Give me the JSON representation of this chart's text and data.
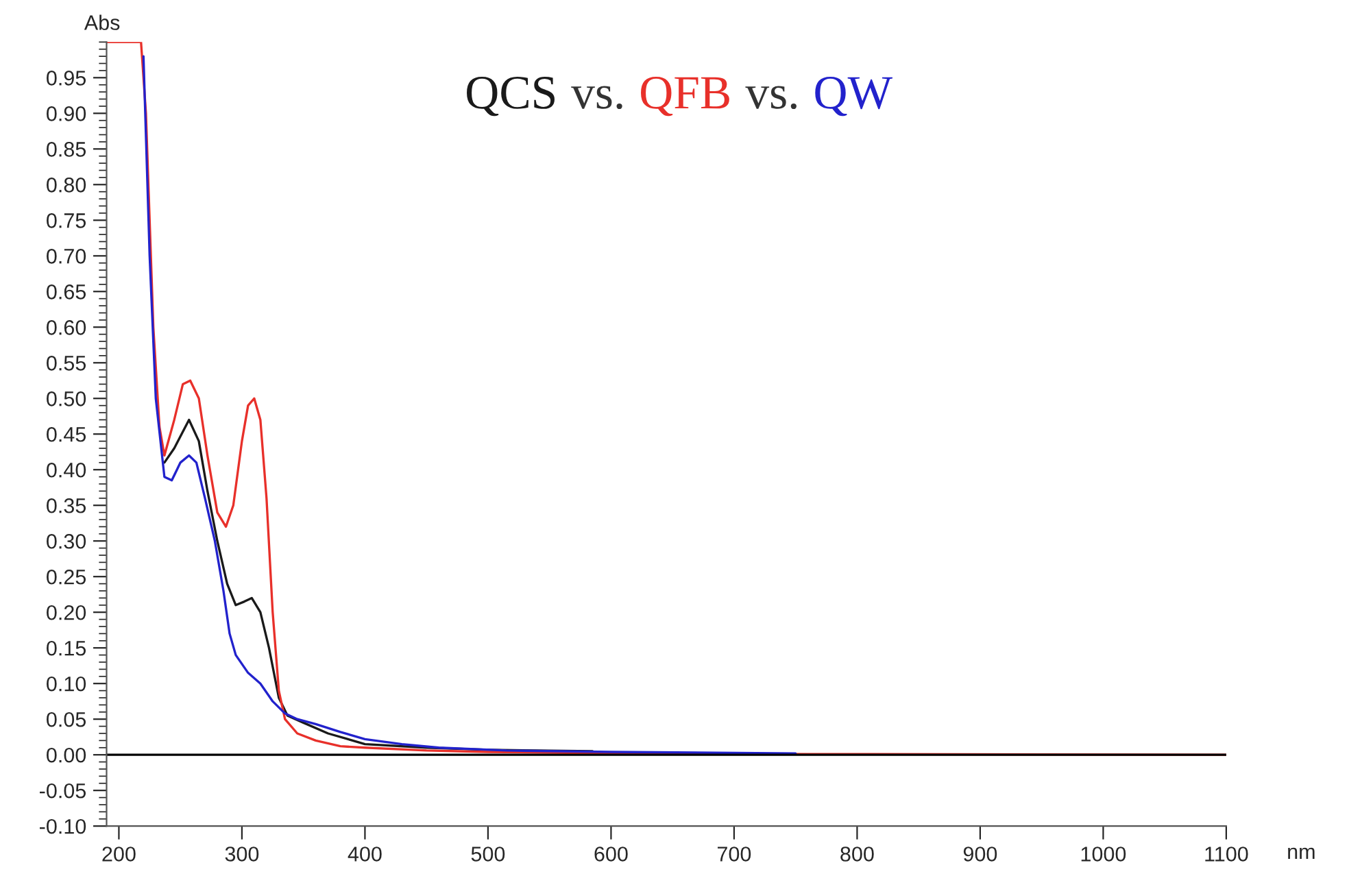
{
  "chart_data": {
    "type": "line",
    "xlabel": "nm",
    "ylabel": "Abs",
    "xlim": [
      190,
      1100
    ],
    "ylim": [
      -0.1,
      1.0
    ],
    "xticks": [
      200,
      300,
      400,
      500,
      600,
      700,
      800,
      900,
      1000,
      1100
    ],
    "yticks": [
      {
        "value": -0.1,
        "label": "-0.10"
      },
      {
        "value": -0.05,
        "label": "-0.05"
      },
      {
        "value": 0.0,
        "label": "0.00"
      },
      {
        "value": 0.05,
        "label": "0.05"
      },
      {
        "value": 0.1,
        "label": "0.10"
      },
      {
        "value": 0.15,
        "label": "0.15"
      },
      {
        "value": 0.2,
        "label": "0.20"
      },
      {
        "value": 0.25,
        "label": "0.25"
      },
      {
        "value": 0.3,
        "label": "0.30"
      },
      {
        "value": 0.35,
        "label": "0.35"
      },
      {
        "value": 0.4,
        "label": "0.40"
      },
      {
        "value": 0.45,
        "label": "0.45"
      },
      {
        "value": 0.5,
        "label": "0.50"
      },
      {
        "value": 0.55,
        "label": "0.55"
      },
      {
        "value": 0.6,
        "label": "0.60"
      },
      {
        "value": 0.65,
        "label": "0.65"
      },
      {
        "value": 0.7,
        "label": "0.70"
      },
      {
        "value": 0.75,
        "label": "0.75"
      },
      {
        "value": 0.8,
        "label": "0.80"
      },
      {
        "value": 0.85,
        "label": "0.85"
      },
      {
        "value": 0.9,
        "label": "0.90"
      },
      {
        "value": 0.95,
        "label": "0.95"
      }
    ],
    "grid": false,
    "legend": "top",
    "marker": "none",
    "line_style": "solid",
    "annotations": [
      "vs.",
      "vs."
    ],
    "ref_lines": [
      {
        "axis": "y",
        "value": 0,
        "color": "#000000"
      }
    ],
    "series": [
      {
        "name": "QCS",
        "color": "#1a1a1a",
        "x": [
          237,
          245,
          257,
          265,
          272,
          280,
          288,
          295,
          302,
          308,
          315,
          322,
          330,
          337,
          350,
          370,
          400,
          450,
          500,
          585
        ],
        "values": [
          0.41,
          0.43,
          0.47,
          0.44,
          0.37,
          0.3,
          0.24,
          0.21,
          0.215,
          0.22,
          0.2,
          0.15,
          0.08,
          0.055,
          0.045,
          0.03,
          0.015,
          0.01,
          0.007,
          0.005
        ]
      },
      {
        "name": "QFB",
        "color": "#e8302a",
        "x": [
          190,
          218,
          222,
          228,
          233,
          237,
          245,
          252,
          258,
          265,
          272,
          280,
          287,
          293,
          300,
          305,
          310,
          315,
          320,
          325,
          330,
          335,
          345,
          360,
          380,
          400,
          450,
          500,
          600,
          760,
          1100
        ],
        "values": [
          1.0,
          1.0,
          0.9,
          0.6,
          0.46,
          0.42,
          0.47,
          0.52,
          0.525,
          0.5,
          0.42,
          0.34,
          0.32,
          0.35,
          0.44,
          0.49,
          0.5,
          0.47,
          0.36,
          0.2,
          0.09,
          0.05,
          0.03,
          0.02,
          0.012,
          0.01,
          0.006,
          0.004,
          0.002,
          0.001,
          0.0
        ]
      },
      {
        "name": "QW",
        "color": "#2222cc",
        "x": [
          220,
          225,
          230,
          237,
          243,
          250,
          257,
          263,
          270,
          278,
          285,
          290,
          295,
          305,
          315,
          325,
          335,
          345,
          360,
          380,
          400,
          430,
          460,
          515,
          600,
          750
        ],
        "values": [
          0.98,
          0.7,
          0.5,
          0.39,
          0.385,
          0.41,
          0.42,
          0.41,
          0.36,
          0.3,
          0.23,
          0.17,
          0.14,
          0.115,
          0.1,
          0.075,
          0.058,
          0.05,
          0.043,
          0.032,
          0.022,
          0.015,
          0.01,
          0.006,
          0.004,
          0.002
        ]
      }
    ]
  }
}
